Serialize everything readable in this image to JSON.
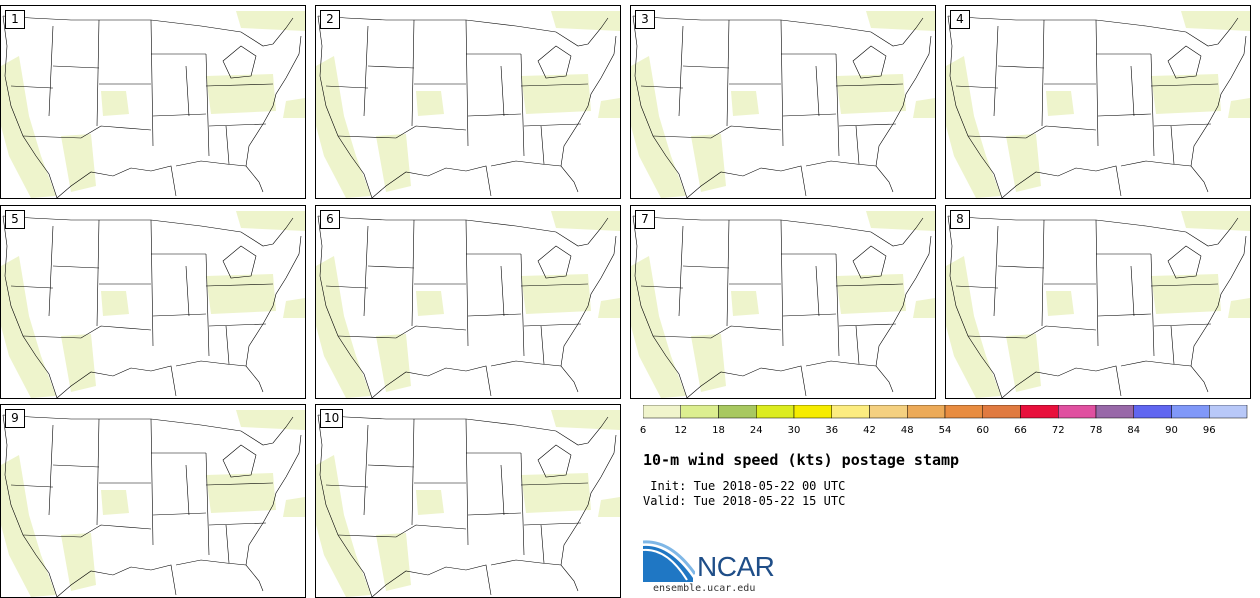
{
  "panels": [
    {
      "label": "1"
    },
    {
      "label": "2"
    },
    {
      "label": "3"
    },
    {
      "label": "4"
    },
    {
      "label": "5"
    },
    {
      "label": "6"
    },
    {
      "label": "7"
    },
    {
      "label": "8"
    },
    {
      "label": "9"
    },
    {
      "label": "10"
    }
  ],
  "colorbar": {
    "ticks": [
      "6",
      "12",
      "18",
      "24",
      "30",
      "36",
      "42",
      "48",
      "54",
      "60",
      "66",
      "72",
      "78",
      "84",
      "90",
      "96"
    ],
    "colors": [
      "#f0f4cc",
      "#dcee90",
      "#a8c860",
      "#dcec20",
      "#f6ec00",
      "#fcec80",
      "#f4d080",
      "#ecaa58",
      "#e88c40",
      "#e07a40",
      "#e8103c",
      "#e050a0",
      "#9868a8",
      "#6066f0",
      "#8098f8",
      "#b8c8f8"
    ]
  },
  "title": "10-m wind speed (kts) postage stamp",
  "init": " Init: Tue 2018-05-22 00 UTC",
  "valid": "Valid: Tue 2018-05-22 15 UTC",
  "logo": {
    "text": "NCAR",
    "url": "ensemble.ucar.edu"
  }
}
